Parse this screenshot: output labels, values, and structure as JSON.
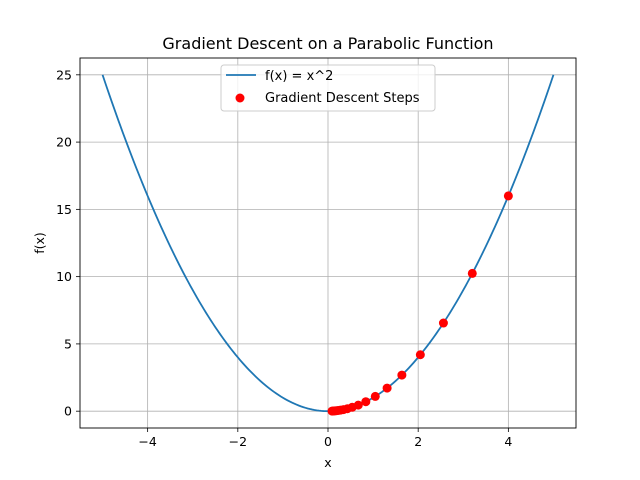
{
  "chart_data": {
    "type": "line",
    "title": "Gradient Descent on a Parabolic Function",
    "xlabel": "x",
    "ylabel": "f(x)",
    "xlim": [
      -5.5,
      5.5
    ],
    "ylim": [
      -1.25,
      26.25
    ],
    "xticks": [
      -4,
      -2,
      0,
      2,
      4
    ],
    "xtick_labels": [
      "−4",
      "−2",
      "0",
      "2",
      "4"
    ],
    "yticks": [
      0,
      5,
      10,
      15,
      20,
      25
    ],
    "ytick_labels": [
      "0",
      "5",
      "10",
      "15",
      "20",
      "25"
    ],
    "grid": true,
    "legend_position": "top-center",
    "series": [
      {
        "name": "f(x) = x^2",
        "kind": "line",
        "color": "#1f77b4",
        "function": "x^2",
        "x_range": [
          -5,
          5
        ]
      },
      {
        "name": "Gradient Descent Steps",
        "kind": "scatter",
        "color": "#ff0000",
        "x": [
          4.0,
          3.2,
          2.56,
          2.048,
          1.6384,
          1.3107,
          1.0486,
          0.8389,
          0.6711,
          0.5369,
          0.4295,
          0.3436,
          0.2749,
          0.2199,
          0.1759,
          0.1407,
          0.1126,
          0.0901
        ],
        "y": [
          16.0,
          10.24,
          6.5536,
          4.1943,
          2.6844,
          1.718,
          1.0995,
          0.7037,
          0.4504,
          0.2882,
          0.1845,
          0.1181,
          0.0756,
          0.0484,
          0.0309,
          0.0198,
          0.0127,
          0.0081
        ]
      }
    ]
  }
}
